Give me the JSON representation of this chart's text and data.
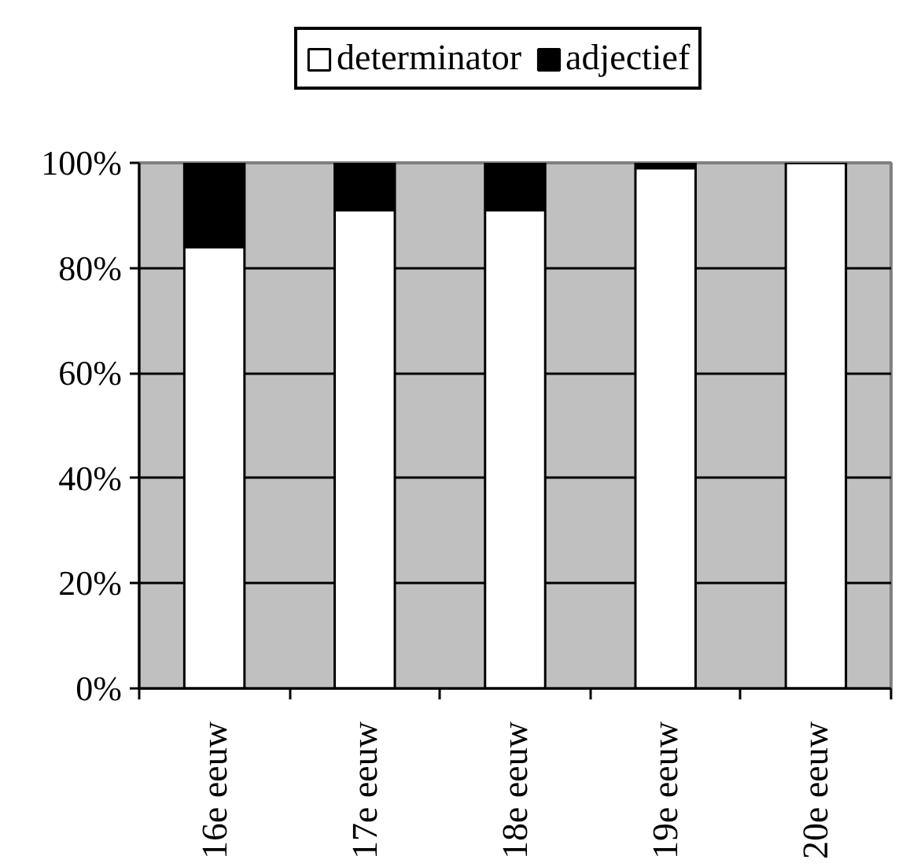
{
  "chart_data": {
    "type": "bar",
    "stacked": true,
    "categories": [
      "16e eeuw",
      "17e eeuw",
      "18e eeuw",
      "19e eeuw",
      "20e eeuw"
    ],
    "series": [
      {
        "name": "determinator",
        "color": "#ffffff",
        "values": [
          84,
          91,
          91,
          99,
          100
        ]
      },
      {
        "name": "adjectief",
        "color": "#000000",
        "values": [
          16,
          9,
          9,
          1,
          0
        ]
      }
    ],
    "ylim": [
      0,
      100
    ],
    "yticks": [
      {
        "value": 0,
        "label": "0%"
      },
      {
        "value": 20,
        "label": "20%"
      },
      {
        "value": 40,
        "label": "40%"
      },
      {
        "value": 60,
        "label": "60%"
      },
      {
        "value": 80,
        "label": "80%"
      },
      {
        "value": 100,
        "label": "100%"
      }
    ],
    "grid": "y",
    "legend": "top"
  }
}
